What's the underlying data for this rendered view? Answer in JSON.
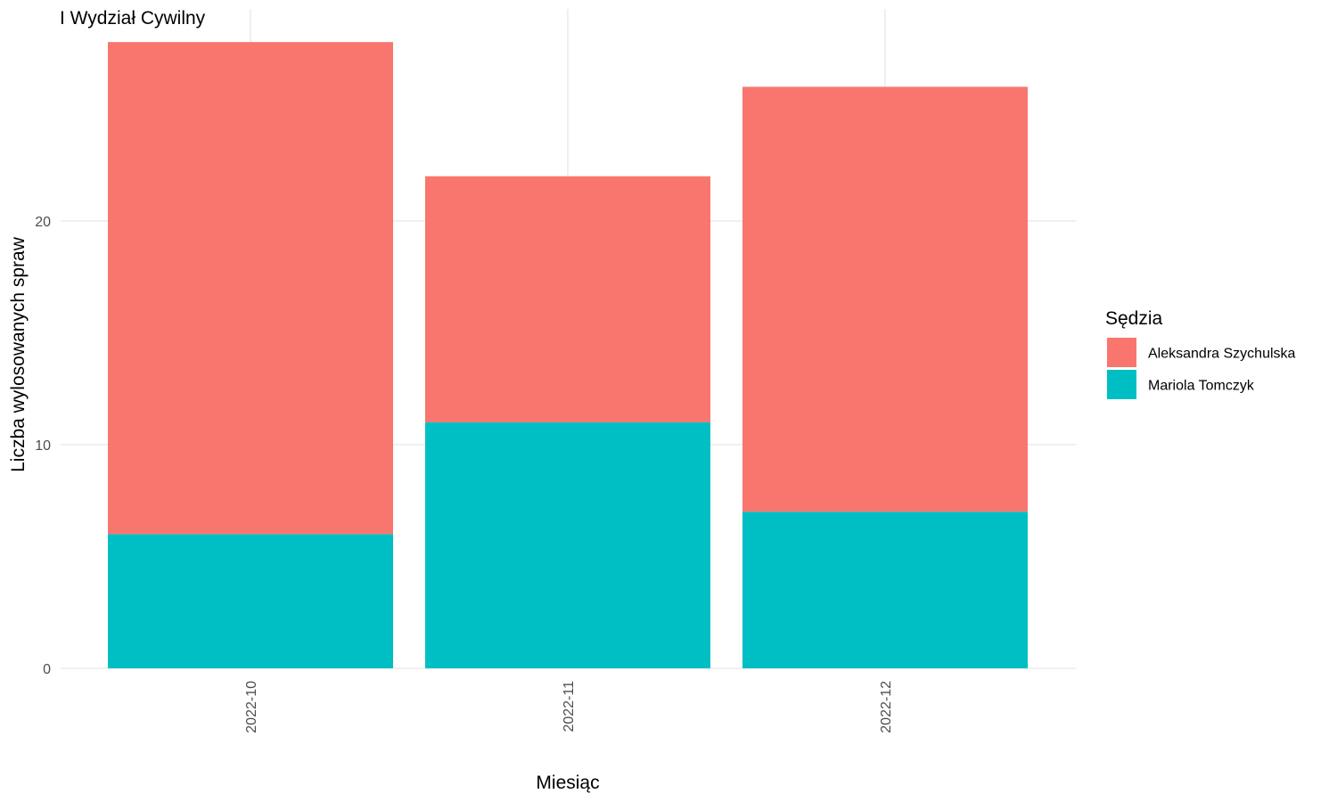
{
  "chart_data": {
    "type": "bar",
    "stacked": true,
    "title": "I Wydział Cywilny",
    "xlabel": "Miesiąc",
    "ylabel": "Liczba wylosowanych spraw",
    "categories": [
      "2022-10",
      "2022-11",
      "2022-12"
    ],
    "series": [
      {
        "name": "Aleksandra Szychulska",
        "color": "#F8766D",
        "values": [
          22,
          11,
          19
        ]
      },
      {
        "name": "Mariola Tomczyk",
        "color": "#00BFC4",
        "values": [
          6,
          11,
          7
        ]
      }
    ],
    "stack_order_bottom_to_top": [
      "Mariola Tomczyk",
      "Aleksandra Szychulska"
    ],
    "ylim": [
      0,
      28
    ],
    "yticks": [
      0,
      10,
      20
    ],
    "ytick_labels": [
      "0",
      "10",
      "20"
    ],
    "grid": true,
    "legend": {
      "title": "Sędzia",
      "position": "right"
    }
  }
}
